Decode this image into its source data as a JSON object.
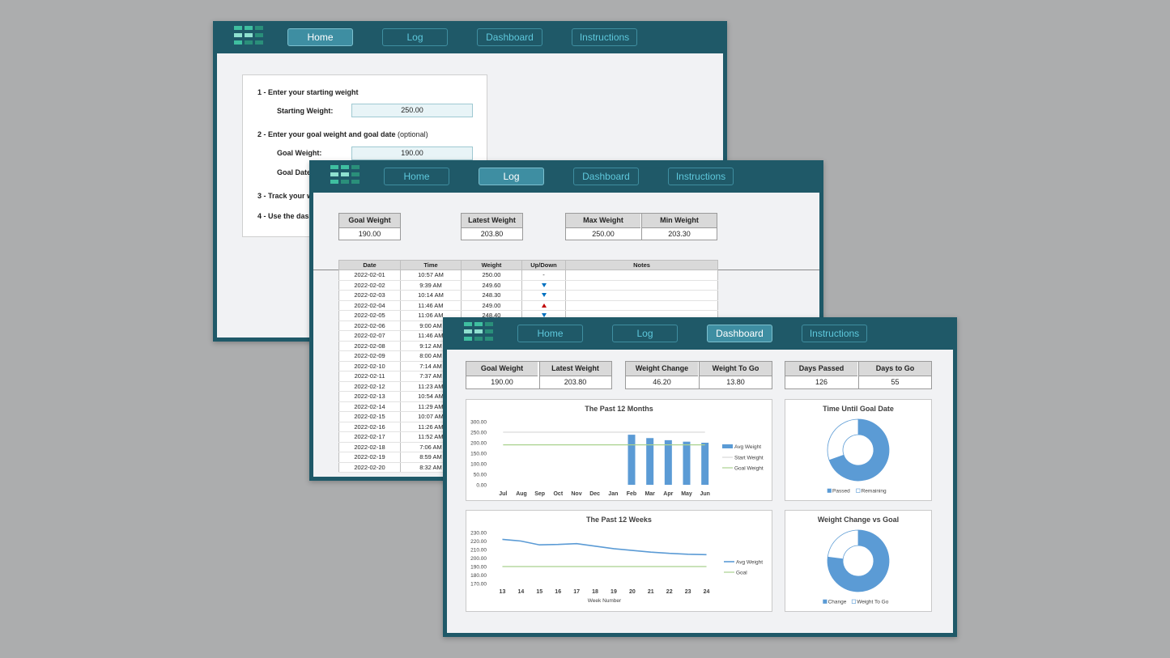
{
  "nav": [
    "Home",
    "Log",
    "Dashboard",
    "Instructions"
  ],
  "colors": {
    "frame": "#1f5968",
    "accent": "#5b9bd5",
    "goal_line": "#a9d18e",
    "start_line": "#d9d9d9",
    "down_arrow": "#0070c0",
    "up_arrow": "#c00000"
  },
  "home": {
    "step1": "1 - Enter your starting weight",
    "starting_weight_label": "Starting Weight:",
    "starting_weight_value": "250.00",
    "step2": "2 - Enter your goal weight and goal date",
    "step2_optional": "(optional)",
    "goal_weight_label": "Goal Weight:",
    "goal_weight_value": "190.00",
    "goal_date_label": "Goal Date",
    "step3": "3 - Track your w",
    "step4": "4 - Use the dash"
  },
  "log": {
    "kpis": [
      {
        "label": "Goal Weight",
        "value": "190.00"
      },
      {
        "label": "Latest Weight",
        "value": "203.80"
      },
      {
        "label": "Max Weight",
        "value": "250.00"
      },
      {
        "label": "Min Weight",
        "value": "203.30"
      }
    ],
    "columns": [
      "Date",
      "Time",
      "Weight",
      "Up/Down",
      "Notes"
    ],
    "rows": [
      {
        "date": "2022-02-01",
        "time": "10:57 AM",
        "weight": "250.00",
        "trend": "-"
      },
      {
        "date": "2022-02-02",
        "time": "9:39 AM",
        "weight": "249.60",
        "trend": "down"
      },
      {
        "date": "2022-02-03",
        "time": "10:14 AM",
        "weight": "248.30",
        "trend": "down"
      },
      {
        "date": "2022-02-04",
        "time": "11:46 AM",
        "weight": "249.00",
        "trend": "up"
      },
      {
        "date": "2022-02-05",
        "time": "11:06 AM",
        "weight": "248.40",
        "trend": "down"
      },
      {
        "date": "2022-02-06",
        "time": "9:00 AM",
        "weight": "",
        "trend": ""
      },
      {
        "date": "2022-02-07",
        "time": "11:46 AM",
        "weight": "",
        "trend": ""
      },
      {
        "date": "2022-02-08",
        "time": "9:12 AM",
        "weight": "",
        "trend": ""
      },
      {
        "date": "2022-02-09",
        "time": "8:00 AM",
        "weight": "",
        "trend": ""
      },
      {
        "date": "2022-02-10",
        "time": "7:14 AM",
        "weight": "",
        "trend": ""
      },
      {
        "date": "2022-02-11",
        "time": "7:37 AM",
        "weight": "",
        "trend": ""
      },
      {
        "date": "2022-02-12",
        "time": "11:23 AM",
        "weight": "",
        "trend": ""
      },
      {
        "date": "2022-02-13",
        "time": "10:54 AM",
        "weight": "",
        "trend": ""
      },
      {
        "date": "2022-02-14",
        "time": "11:29 AM",
        "weight": "",
        "trend": ""
      },
      {
        "date": "2022-02-15",
        "time": "10:07 AM",
        "weight": "",
        "trend": ""
      },
      {
        "date": "2022-02-16",
        "time": "11:26 AM",
        "weight": "",
        "trend": ""
      },
      {
        "date": "2022-02-17",
        "time": "11:52 AM",
        "weight": "",
        "trend": ""
      },
      {
        "date": "2022-02-18",
        "time": "7:06 AM",
        "weight": "",
        "trend": ""
      },
      {
        "date": "2022-02-19",
        "time": "8:59 AM",
        "weight": "",
        "trend": ""
      },
      {
        "date": "2022-02-20",
        "time": "8:32 AM",
        "weight": "",
        "trend": ""
      }
    ]
  },
  "dashboard": {
    "kpis": [
      {
        "label": "Goal Weight",
        "value": "190.00"
      },
      {
        "label": "Latest Weight",
        "value": "203.80"
      },
      {
        "label": "Weight Change",
        "value": "46.20"
      },
      {
        "label": "Weight To Go",
        "value": "13.80"
      },
      {
        "label": "Days Passed",
        "value": "126"
      },
      {
        "label": "Days to Go",
        "value": "55"
      }
    ]
  },
  "chart_data": [
    {
      "type": "bar",
      "title": "The Past 12 Months",
      "categories": [
        "Jul",
        "Aug",
        "Sep",
        "Oct",
        "Nov",
        "Dec",
        "Jan",
        "Feb",
        "Mar",
        "Apr",
        "May",
        "Jun"
      ],
      "series": [
        {
          "name": "Avg Weight",
          "values": [
            null,
            null,
            null,
            null,
            null,
            null,
            null,
            238,
            222,
            212,
            205,
            200
          ]
        },
        {
          "name": "Start Weight",
          "type": "line",
          "values": [
            250,
            250,
            250,
            250,
            250,
            250,
            250,
            250,
            250,
            250,
            250,
            250
          ]
        },
        {
          "name": "Goal Weight",
          "type": "line",
          "values": [
            190,
            190,
            190,
            190,
            190,
            190,
            190,
            190,
            190,
            190,
            190,
            190
          ]
        }
      ],
      "yticks": [
        "300.00",
        "250.00",
        "200.00",
        "150.00",
        "100.00",
        "50.00",
        "0.00"
      ],
      "ylim": [
        0,
        300
      ],
      "legend": "right"
    },
    {
      "type": "pie",
      "title": "Time Until Goal Date",
      "labels": [
        "Passed",
        "Remaining"
      ],
      "values": [
        126,
        55
      ],
      "legend": "bottom"
    },
    {
      "type": "line",
      "title": "The Past 12 Weeks",
      "x": [
        "13",
        "14",
        "15",
        "16",
        "17",
        "18",
        "19",
        "20",
        "21",
        "22",
        "23",
        "24"
      ],
      "xlabel": "Week Number",
      "series": [
        {
          "name": "Avg Weight",
          "values": [
            222,
            220,
            215.5,
            216,
            217,
            214,
            211,
            209,
            207,
            205.5,
            204.5,
            204
          ]
        },
        {
          "name": "Goal",
          "values": [
            190,
            190,
            190,
            190,
            190,
            190,
            190,
            190,
            190,
            190,
            190,
            190
          ]
        }
      ],
      "yticks": [
        "230.00",
        "220.00",
        "210.00",
        "200.00",
        "190.00",
        "180.00",
        "170.00"
      ],
      "ylim": [
        170,
        230
      ],
      "legend": "right"
    },
    {
      "type": "pie",
      "title": "Weight Change vs Goal",
      "labels": [
        "Change",
        "Weight To Go"
      ],
      "values": [
        46.2,
        13.8
      ],
      "legend": "bottom"
    }
  ]
}
